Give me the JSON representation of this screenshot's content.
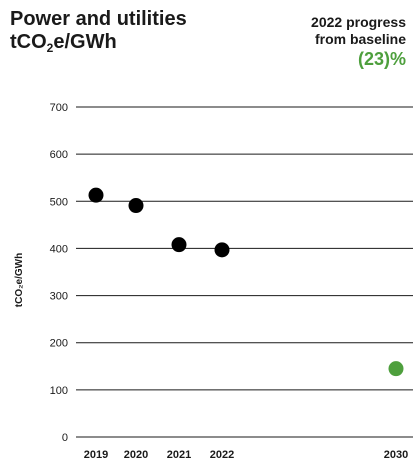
{
  "title": {
    "line1": "Power and utilities",
    "line2_prefix": "tCO",
    "line2_sub": "2",
    "line2_suffix": "e/GWh"
  },
  "progress": {
    "line1": "2022 progress",
    "line2": "from baseline",
    "value": "(23)%",
    "value_color": "#4e9f3d"
  },
  "chart_data": {
    "type": "scatter",
    "ylabel": "tCO₂e/GWh",
    "ylim": [
      0,
      700
    ],
    "yticks": [
      0,
      100,
      200,
      300,
      400,
      500,
      600,
      700
    ],
    "grid": true,
    "points": [
      {
        "x": "2019",
        "y": 513,
        "color": "#000000"
      },
      {
        "x": "2020",
        "y": 491,
        "color": "#000000"
      },
      {
        "x": "2021",
        "y": 408,
        "color": "#000000"
      },
      {
        "x": "2022",
        "y": 397,
        "color": "#000000"
      },
      {
        "x": "2030",
        "y": 145,
        "color": "#4e9f3d"
      }
    ]
  }
}
